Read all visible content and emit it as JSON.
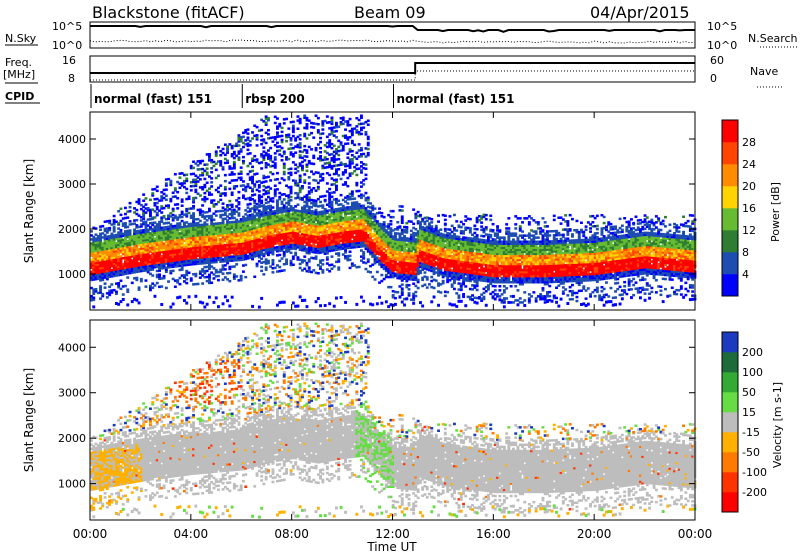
{
  "header": {
    "radar": "Blackstone (fitACF)",
    "beam": "Beam 09",
    "date": "04/Apr/2015"
  },
  "params": {
    "nsky_label": "N.Sky",
    "nsearch_label": "N.Search",
    "freq_label": "Freq.",
    "freq_unit": "[MHz]",
    "nave_label": "Nave",
    "cpid_label": "CPID",
    "noise_ticks_left": [
      "10^5",
      "10^0"
    ],
    "noise_ticks_right": [
      "10^5",
      "10^0"
    ],
    "freq_ticks": [
      "16",
      "8"
    ],
    "nave_ticks": [
      "60",
      "0"
    ]
  },
  "cpid": {
    "segments": [
      {
        "label": "normal (fast) 151",
        "start_hour": 0
      },
      {
        "label": "rbsp 200",
        "start_hour": 6
      },
      {
        "label": "normal (fast) 151",
        "start_hour": 12
      }
    ]
  },
  "chart_data": [
    {
      "type": "heatmap",
      "name": "power",
      "xlabel": "",
      "ylabel": "Slant Range [km]",
      "xlim": [
        0,
        24
      ],
      "ylim": [
        200,
        4600
      ],
      "yticks": [
        1000,
        2000,
        3000,
        4000
      ],
      "colorbar": {
        "label": "Power [dB]",
        "ticks": [
          4,
          8,
          12,
          16,
          20,
          24,
          28
        ],
        "colors": [
          "#0000ff",
          "#1d4db0",
          "#2e7d32",
          "#66bb33",
          "#ffd400",
          "#ff8c00",
          "#ff4500",
          "#ff0000"
        ]
      },
      "main_band_center_km": [
        [
          0,
          1100
        ],
        [
          2,
          1300
        ],
        [
          4,
          1450
        ],
        [
          6,
          1550
        ],
        [
          7,
          1700
        ],
        [
          8,
          1800
        ],
        [
          9,
          1700
        ],
        [
          10,
          1800
        ],
        [
          10.8,
          1850
        ],
        [
          11.5,
          1400
        ],
        [
          12,
          1150
        ],
        [
          12.9,
          1100
        ],
        [
          13,
          1400
        ],
        [
          14,
          1200
        ],
        [
          16,
          1050
        ],
        [
          18,
          1050
        ],
        [
          20,
          1100
        ],
        [
          22,
          1250
        ],
        [
          24,
          1150
        ]
      ]
    },
    {
      "type": "heatmap",
      "name": "velocity",
      "xlabel": "Time UT",
      "ylabel": "Slant Range [km]",
      "xlim": [
        0,
        24
      ],
      "ylim": [
        200,
        4600
      ],
      "yticks": [
        1000,
        2000,
        3000,
        4000
      ],
      "xticks": [
        "00:00",
        "04:00",
        "08:00",
        "12:00",
        "16:00",
        "20:00",
        "00:00"
      ],
      "colorbar": {
        "label": "Velocity [m s-1]",
        "ticks": [
          "200",
          "100",
          "50",
          "15",
          "-15",
          "-50",
          "-100",
          "-200"
        ],
        "colors": [
          "#1a3bbf",
          "#1e6b3a",
          "#33aa33",
          "#66dd44",
          "#bdbdbd",
          "#ffb000",
          "#ff7a00",
          "#ff3300",
          "#ff0000"
        ]
      }
    }
  ]
}
